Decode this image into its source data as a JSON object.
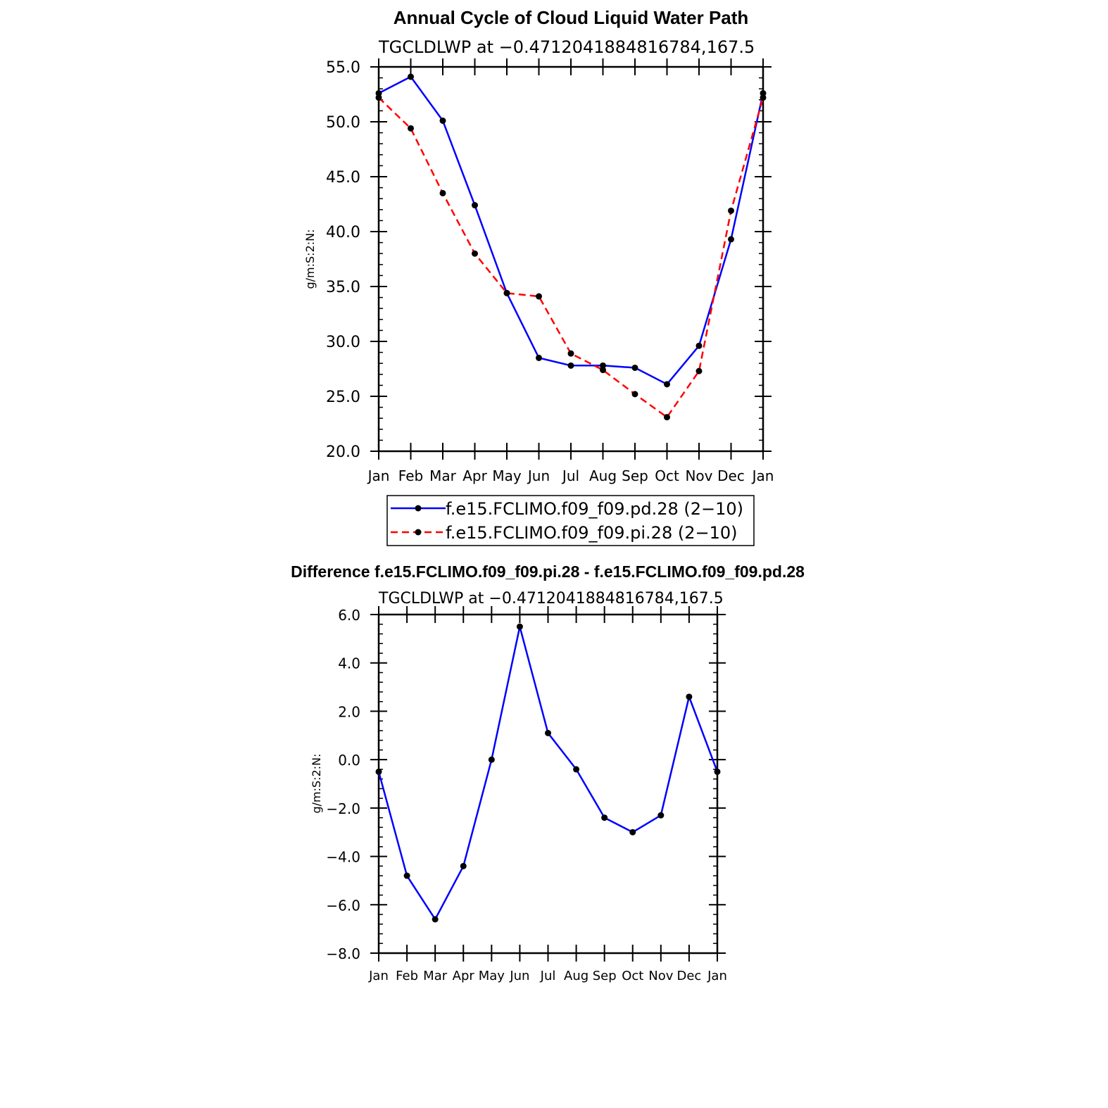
{
  "chart_data": [
    {
      "type": "line",
      "title": "Annual Cycle of Cloud Liquid Water Path",
      "subtitle": "TGCLDLWP  at  −0.4712041884816784,167.5",
      "ylabel": "g/m:S:2:N:",
      "xlabel": "",
      "ylim": [
        20,
        55
      ],
      "yticks": [
        "20.0",
        "25.0",
        "30.0",
        "35.0",
        "40.0",
        "45.0",
        "50.0",
        "55.0"
      ],
      "categories": [
        "Jan",
        "Feb",
        "Mar",
        "Apr",
        "May",
        "Jun",
        "Jul",
        "Aug",
        "Sep",
        "Oct",
        "Nov",
        "Dec",
        "Jan"
      ],
      "legend_position": "bottom",
      "series": [
        {
          "name": "f.e15.FCLIMO.f09_f09.pd.28 (2−10)",
          "color": "#0000ff",
          "dash": "solid",
          "values": [
            52.6,
            54.1,
            50.1,
            42.4,
            34.4,
            28.5,
            27.8,
            27.8,
            27.6,
            26.1,
            29.6,
            39.3,
            52.6
          ]
        },
        {
          "name": "f.e15.FCLIMO.f09_f09.pi.28 (2−10)",
          "color": "#ff0000",
          "dash": "dashed",
          "values": [
            52.2,
            49.4,
            43.5,
            38.0,
            34.4,
            34.1,
            28.9,
            27.4,
            25.2,
            23.1,
            27.3,
            41.9,
            52.2
          ]
        }
      ]
    },
    {
      "type": "line",
      "title": "Difference f.e15.FCLIMO.f09_f09.pi.28 - f.e15.FCLIMO.f09_f09.pd.28",
      "subtitle": "TGCLDLWP  at  −0.4712041884816784,167.5",
      "ylabel": "g/m:S:2:N:",
      "xlabel": "",
      "ylim": [
        -8,
        6
      ],
      "yticks": [
        "−8.0",
        "−6.0",
        "−4.0",
        "−2.0",
        "0.0",
        "2.0",
        "4.0",
        "6.0"
      ],
      "categories": [
        "Jan",
        "Feb",
        "Mar",
        "Apr",
        "May",
        "Jun",
        "Jul",
        "Aug",
        "Sep",
        "Oct",
        "Nov",
        "Dec",
        "Jan"
      ],
      "series": [
        {
          "color": "#0000ff",
          "dash": "solid",
          "values": [
            -0.5,
            -4.8,
            -6.6,
            -4.4,
            0.0,
            5.5,
            1.1,
            -0.4,
            -2.4,
            -3.0,
            -2.3,
            2.6,
            -0.5
          ]
        }
      ]
    }
  ]
}
